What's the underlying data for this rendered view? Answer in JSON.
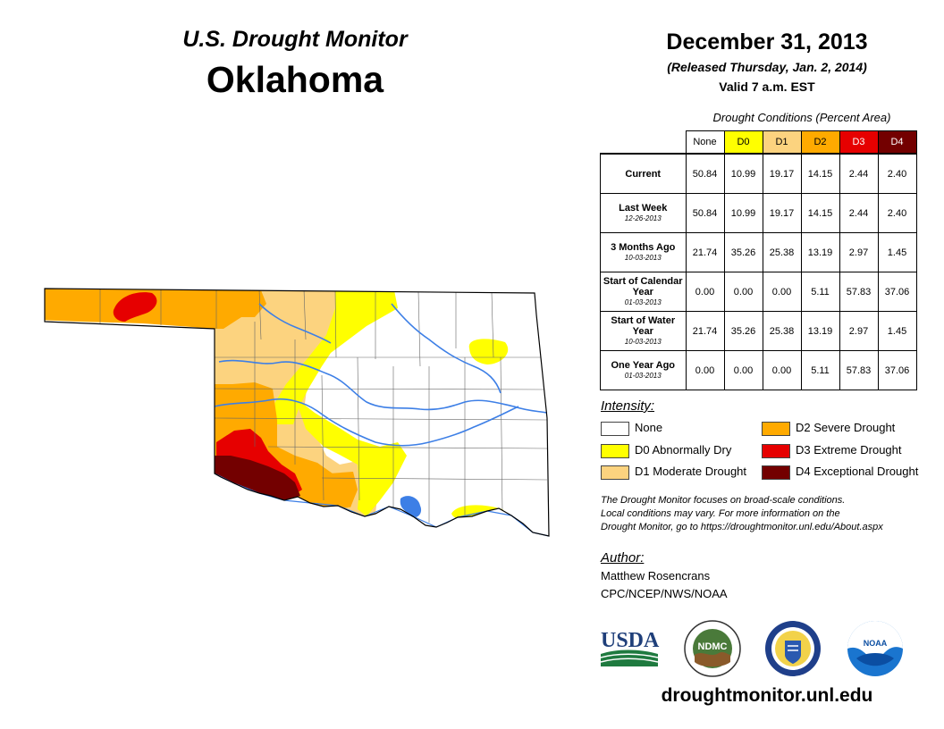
{
  "header": {
    "title": "U.S. Drought Monitor",
    "state": "Oklahoma",
    "date": "December 31, 2013",
    "released": "(Released Thursday, Jan. 2, 2014)",
    "valid": "Valid 7 a.m. EST"
  },
  "table": {
    "caption": "Drought Conditions (Percent Area)",
    "columns": [
      {
        "label": "None",
        "color": "#ffffff"
      },
      {
        "label": "D0",
        "color": "#ffff00"
      },
      {
        "label": "D1",
        "color": "#fcd37f"
      },
      {
        "label": "D2",
        "color": "#ffaa00"
      },
      {
        "label": "D3",
        "color": "#e60000"
      },
      {
        "label": "D4",
        "color": "#730000"
      }
    ],
    "rows": [
      {
        "label": "Current",
        "sub": "",
        "values": [
          "50.84",
          "10.99",
          "19.17",
          "14.15",
          "2.44",
          "2.40"
        ]
      },
      {
        "label": "Last Week",
        "sub": "12-26-2013",
        "values": [
          "50.84",
          "10.99",
          "19.17",
          "14.15",
          "2.44",
          "2.40"
        ]
      },
      {
        "label": "3 Months Ago",
        "sub": "10-03-2013",
        "values": [
          "21.74",
          "35.26",
          "25.38",
          "13.19",
          "2.97",
          "1.45"
        ]
      },
      {
        "label": "Start of Calendar Year",
        "sub": "01-03-2013",
        "values": [
          "0.00",
          "0.00",
          "0.00",
          "5.11",
          "57.83",
          "37.06"
        ]
      },
      {
        "label": "Start of Water Year",
        "sub": "10-03-2013",
        "values": [
          "21.74",
          "35.26",
          "25.38",
          "13.19",
          "2.97",
          "1.45"
        ]
      },
      {
        "label": "One Year Ago",
        "sub": "01-03-2013",
        "values": [
          "0.00",
          "0.00",
          "0.00",
          "5.11",
          "57.83",
          "37.06"
        ]
      }
    ]
  },
  "legend": {
    "title": "Intensity:",
    "items": [
      {
        "label": "None",
        "color": "#ffffff"
      },
      {
        "label": "D0 Abnormally Dry",
        "color": "#ffff00"
      },
      {
        "label": "D1 Moderate Drought",
        "color": "#fcd37f"
      },
      {
        "label": "D2 Severe Drought",
        "color": "#ffaa00"
      },
      {
        "label": "D3 Extreme Drought",
        "color": "#e60000"
      },
      {
        "label": "D4 Exceptional Drought",
        "color": "#730000"
      }
    ]
  },
  "note": {
    "line1": "The Drought Monitor focuses on broad-scale conditions.",
    "line2": "Local conditions may vary. For more information on the",
    "line3": "Drought Monitor, go to https://droughtmonitor.unl.edu/About.aspx"
  },
  "author": {
    "title": "Author:",
    "name": "Matthew Rosencrans",
    "org": "CPC/NCEP/NWS/NOAA"
  },
  "logos": {
    "usda": "USDA",
    "ndmc": "NDMC",
    "noaa": "NOAA"
  },
  "footer": {
    "url": "droughtmonitor.unl.edu"
  },
  "map": {
    "colors": {
      "none": "#ffffff",
      "d0": "#ffff00",
      "d1": "#fcd37f",
      "d2": "#ffaa00",
      "d3": "#e60000",
      "d4": "#730000",
      "water": "#3d7fe6"
    }
  }
}
